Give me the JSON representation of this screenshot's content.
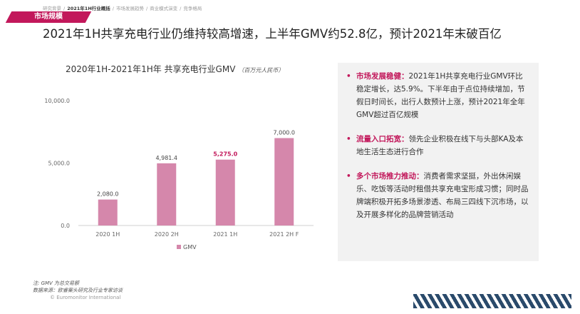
{
  "header": {
    "breadcrumb": [
      "研究背景",
      "2021年1H行业概括",
      "市场发展趋势",
      "商业模式演变",
      "竞争格局"
    ],
    "active_index": 1,
    "section_tag": "市场规模",
    "page_title": "2021年1H共享充电行业仍维持较高增速，上半年GMV约52.8亿，预计2021年末破百亿"
  },
  "chart_title": "2020年1H-2021年1H年 共享充电行业GMV",
  "chart_unit": "（百万元人民币）",
  "chart_data": {
    "type": "bar",
    "categories": [
      "2020 1H",
      "2020 2H",
      "2021 1H",
      "2021 2H F"
    ],
    "series": [
      {
        "name": "GMV",
        "values": [
          2080.0,
          4981.4,
          5275.0,
          7000.0
        ],
        "labels": [
          "2,080.0",
          "4,981.4",
          "5,275.0",
          "7,000.0"
        ],
        "highlight": [
          false,
          false,
          true,
          false
        ]
      }
    ],
    "yticks": [
      0,
      5000,
      10000
    ],
    "ytick_labels": [
      "0.0",
      "5,000.0",
      "10,000.0"
    ],
    "ylim": [
      0,
      10000
    ],
    "legend_position": "bottom",
    "color": "#d587ab"
  },
  "insights": [
    {
      "head": "市场发展稳健：",
      "text": "2021年1H共享充电行业GMV环比稳定增长，达5.9%。下半年由于点位持续增加，节假日时间长，出行人数预计上涨，预计2021年全年GMV超过百亿规模"
    },
    {
      "head": "流量入口拓宽：",
      "text": "领先企业积极在线下与头部KA及本地生活生态进行合作"
    },
    {
      "head": "多个市场推力推动：",
      "text": "消费者需求坚挺，外出休闲娱乐、吃饭等活动时租借共享充电宝形成习惯；同时品牌端积极开拓多场景渗透、布局三四线下沉市场，以及开展多样化的品牌营销活动"
    }
  ],
  "bullet_symbol": "•",
  "note": "注: GMV 为总交易额",
  "source": "数据来源：欧睿案头研究及行业专家访谈",
  "copyright": "© Euromonitor International"
}
